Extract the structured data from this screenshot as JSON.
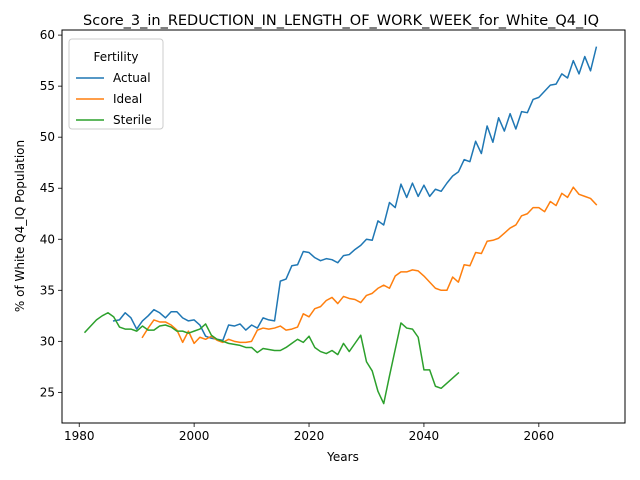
{
  "chart_data": {
    "type": "line",
    "title": "Score_3_in_REDUCTION_IN_LENGTH_OF_WORK_WEEK_for_White_Q4_IQ",
    "xlabel": "Years",
    "ylabel": "% of White Q4_IQ Population",
    "xlim": [
      1977,
      2075
    ],
    "ylim": [
      22,
      60.5
    ],
    "xticks": [
      1980,
      2000,
      2020,
      2040,
      2060
    ],
    "yticks": [
      25,
      30,
      35,
      40,
      45,
      50,
      55,
      60
    ],
    "grid": false,
    "legend": {
      "title": "Fertility",
      "placement": "top-left"
    },
    "series": [
      {
        "name": "Actual",
        "color": "#1f77b4",
        "x": [
          1986,
          1987,
          1988,
          1989,
          1990,
          1991,
          1992,
          1993,
          1994,
          1995,
          1996,
          1997,
          1998,
          1999,
          2000,
          2001,
          2002,
          2003,
          2004,
          2005,
          2006,
          2007,
          2008,
          2009,
          2010,
          2011,
          2012,
          2013,
          2014,
          2015,
          2016,
          2017,
          2018,
          2019,
          2020,
          2021,
          2022,
          2023,
          2024,
          2025,
          2026,
          2027,
          2028,
          2029,
          2030,
          2031,
          2032,
          2033,
          2034,
          2035,
          2036,
          2037,
          2038,
          2039,
          2040,
          2041,
          2042,
          2043,
          2044,
          2045,
          2046,
          2047,
          2048,
          2049,
          2050,
          2051,
          2052,
          2053,
          2054,
          2055,
          2056,
          2057,
          2058,
          2059,
          2060,
          2061,
          2062,
          2063,
          2064,
          2065,
          2066,
          2067,
          2068,
          2069,
          2070
        ],
        "values": [
          32.0,
          32.1,
          32.8,
          32.3,
          31.2,
          32.0,
          32.5,
          33.1,
          32.8,
          32.3,
          32.9,
          32.9,
          32.3,
          32.0,
          32.1,
          31.6,
          30.5,
          30.3,
          30.2,
          30.1,
          31.6,
          31.5,
          31.7,
          31.1,
          31.6,
          31.3,
          32.3,
          32.1,
          32.0,
          35.9,
          36.1,
          37.4,
          37.5,
          38.8,
          38.7,
          38.2,
          37.9,
          38.1,
          38.0,
          37.7,
          38.4,
          38.5,
          39.0,
          39.4,
          40.0,
          39.9,
          41.8,
          41.4,
          43.6,
          43.1,
          45.4,
          44.1,
          45.5,
          44.2,
          45.3,
          44.2,
          44.9,
          44.7,
          45.5,
          46.2,
          46.6,
          47.8,
          47.6,
          49.6,
          48.4,
          51.1,
          49.5,
          51.9,
          50.6,
          52.3,
          50.8,
          52.5,
          52.4,
          53.7,
          53.9,
          54.5,
          55.1,
          55.2,
          56.2,
          55.8,
          57.5,
          56.2,
          57.9,
          56.5,
          58.8
        ]
      },
      {
        "name": "Ideal",
        "color": "#ff7f0e",
        "x": [
          1991,
          1992,
          1993,
          1994,
          1995,
          1996,
          1997,
          1998,
          1999,
          2000,
          2001,
          2002,
          2003,
          2004,
          2005,
          2006,
          2007,
          2008,
          2009,
          2010,
          2011,
          2012,
          2013,
          2014,
          2015,
          2016,
          2017,
          2018,
          2019,
          2020,
          2021,
          2022,
          2023,
          2024,
          2025,
          2026,
          2027,
          2028,
          2029,
          2030,
          2031,
          2032,
          2033,
          2034,
          2035,
          2036,
          2037,
          2038,
          2039,
          2040,
          2041,
          2042,
          2043,
          2044,
          2045,
          2046,
          2047,
          2048,
          2049,
          2050,
          2051,
          2052,
          2053,
          2054,
          2055,
          2056,
          2057,
          2058,
          2059,
          2060,
          2061,
          2062,
          2063,
          2064,
          2065,
          2066,
          2067,
          2068,
          2069,
          2070
        ],
        "values": [
          30.4,
          31.3,
          32.1,
          31.9,
          31.9,
          31.6,
          31.1,
          29.9,
          31.0,
          29.8,
          30.4,
          30.2,
          30.5,
          30.1,
          29.9,
          30.2,
          30.0,
          29.9,
          29.9,
          30.0,
          31.1,
          31.3,
          31.2,
          31.3,
          31.5,
          31.1,
          31.2,
          31.4,
          32.7,
          32.4,
          33.2,
          33.4,
          34.0,
          34.3,
          33.7,
          34.4,
          34.2,
          34.1,
          33.8,
          34.5,
          34.7,
          35.2,
          35.5,
          35.2,
          36.4,
          36.8,
          36.8,
          37.0,
          36.9,
          36.4,
          35.8,
          35.2,
          35.0,
          35.0,
          36.3,
          35.8,
          37.5,
          37.4,
          38.7,
          38.6,
          39.8,
          39.9,
          40.1,
          40.6,
          41.1,
          41.4,
          42.3,
          42.5,
          43.1,
          43.1,
          42.7,
          43.7,
          43.3,
          44.5,
          44.1,
          45.1,
          44.4,
          44.2,
          44.0,
          43.4
        ]
      },
      {
        "name": "Sterile",
        "color": "#2ca02c",
        "x": [
          1981,
          1982,
          1983,
          1984,
          1985,
          1986,
          1987,
          1988,
          1989,
          1990,
          1991,
          1992,
          1993,
          1994,
          1995,
          1996,
          1997,
          1998,
          1999,
          2000,
          2001,
          2002,
          2003,
          2004,
          2005,
          2006,
          2007,
          2008,
          2009,
          2010,
          2011,
          2012,
          2013,
          2014,
          2015,
          2016,
          2017,
          2018,
          2019,
          2020,
          2021,
          2022,
          2023,
          2024,
          2025,
          2026,
          2027,
          2028,
          2029,
          2030,
          2031,
          2032,
          2033,
          2034,
          2035,
          2036,
          2037,
          2038,
          2039,
          2040,
          2041,
          2042,
          2043,
          2044,
          2045,
          2046
        ],
        "values": [
          30.9,
          31.5,
          32.1,
          32.5,
          32.8,
          32.4,
          31.4,
          31.2,
          31.2,
          31.0,
          31.5,
          31.1,
          31.1,
          31.5,
          31.6,
          31.4,
          31.0,
          31.0,
          30.8,
          31.0,
          31.2,
          31.7,
          30.6,
          30.2,
          30.0,
          29.8,
          29.7,
          29.6,
          29.4,
          29.4,
          28.9,
          29.3,
          29.2,
          29.1,
          29.1,
          29.4,
          29.8,
          30.2,
          29.9,
          30.5,
          29.4,
          29.0,
          28.8,
          29.1,
          28.7,
          29.8,
          29.0,
          29.8,
          30.6,
          28.0,
          27.1,
          25.1,
          23.9,
          26.6,
          29.2,
          31.8,
          31.3,
          31.2,
          30.4,
          27.2,
          27.2,
          25.6,
          25.4,
          25.9,
          26.4,
          26.9
        ]
      }
    ]
  }
}
